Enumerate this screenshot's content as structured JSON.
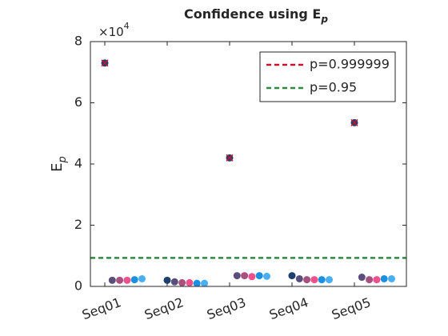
{
  "chart_data": {
    "type": "scatter",
    "title": "Confidence using E",
    "title_subscript": "p",
    "ylabel": "E",
    "ylabel_subscript": "p",
    "y_multiplier": "×10",
    "y_multiplier_exponent": "4",
    "categories": [
      "Seq01",
      "Seq02",
      "Seq03",
      "Seq04",
      "Seq05"
    ],
    "ylim": [
      0,
      8
    ],
    "yticks": [
      0,
      2,
      4,
      6,
      8
    ],
    "series": [
      {
        "color": "#1f3f6e",
        "values": [
          7.3,
          0.2,
          4.2,
          0.35,
          5.35
        ],
        "flagged": [
          true,
          false,
          true,
          false,
          true
        ],
        "flag_color": "#c8102e"
      },
      {
        "color": "#5a4f7c",
        "values": [
          0.2,
          0.15,
          0.35,
          0.25,
          0.3
        ]
      },
      {
        "color": "#a8507e",
        "values": [
          0.2,
          0.12,
          0.35,
          0.22,
          0.22
        ]
      },
      {
        "color": "#f0508c",
        "values": [
          0.2,
          0.12,
          0.32,
          0.22,
          0.22
        ]
      },
      {
        "color": "#1c8fe0",
        "values": [
          0.22,
          0.1,
          0.35,
          0.22,
          0.25
        ]
      },
      {
        "color": "#4aaef0",
        "values": [
          0.25,
          0.1,
          0.33,
          0.22,
          0.25
        ]
      }
    ],
    "lines": [
      {
        "name": "p=0.999999",
        "color": "#c8102e"
      },
      {
        "name": "p=0.95",
        "color": "#2e8b3e",
        "value": 0.93
      }
    ],
    "legend": "upper right"
  }
}
